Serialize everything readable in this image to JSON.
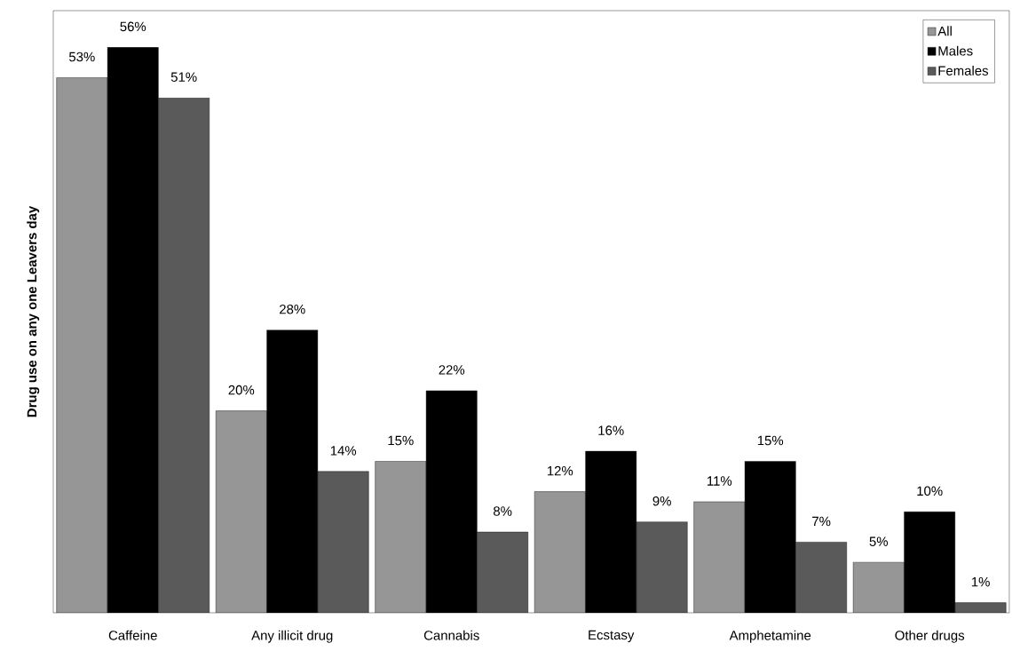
{
  "chart_data": {
    "type": "bar",
    "ylabel": "Drug use on any one Leavers day",
    "categories": [
      "Caffeine",
      "Any illicit drug",
      "Cannabis",
      "Ecstasy",
      "Amphetamine",
      "Other drugs"
    ],
    "series": [
      {
        "name": "All",
        "color": "#969696",
        "values": [
          53,
          20,
          15,
          12,
          11,
          5
        ],
        "value_labels": [
          "53%",
          "20%",
          "15%",
          "12%",
          "11%",
          "5%"
        ]
      },
      {
        "name": "Males",
        "color": "#000000",
        "values": [
          56,
          28,
          22,
          16,
          15,
          10
        ],
        "value_labels": [
          "56%",
          "28%",
          "22%",
          "16%",
          "15%",
          "10%"
        ]
      },
      {
        "name": "Females",
        "color": "#5a5a5a",
        "values": [
          51,
          14,
          8,
          9,
          7,
          1
        ],
        "value_labels": [
          "51%",
          "14%",
          "8%",
          "9%",
          "7%",
          "1%"
        ]
      }
    ],
    "legend": "top right"
  }
}
